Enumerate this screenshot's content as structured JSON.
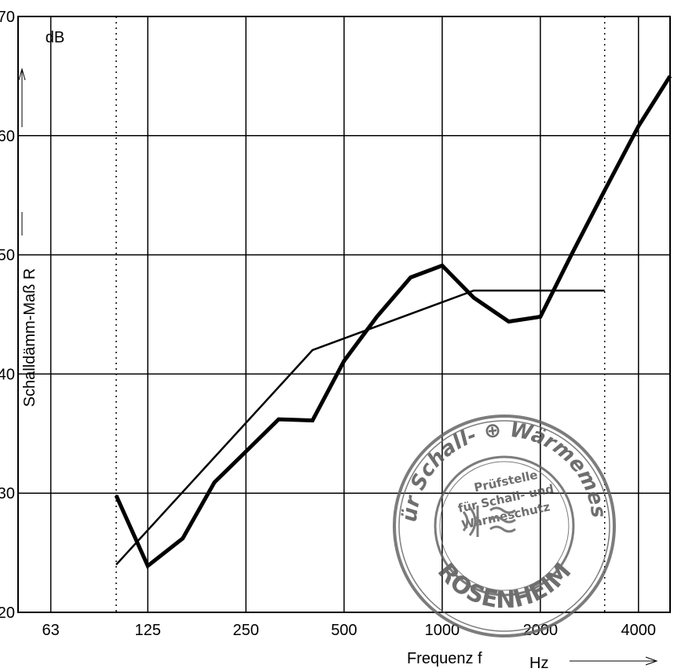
{
  "chart_data": {
    "type": "line",
    "title": "",
    "xlabel": "Frequenz f",
    "xunit": "Hz",
    "ylabel": "Schalldämm-Maß R",
    "yunit": "dB",
    "xscale": "log",
    "xlim": [
      50,
      5000
    ],
    "ylim": [
      20,
      70
    ],
    "grid": true,
    "xticks": [
      "63",
      "125",
      "250",
      "500",
      "1000",
      "2000",
      "4000"
    ],
    "yticks": [
      "20",
      "30",
      "40",
      "50",
      "60",
      "70"
    ],
    "dotted_frequency_markers": [
      100,
      3150
    ],
    "series": [
      {
        "style": "thick",
        "x": [
          100,
          125,
          160,
          200,
          250,
          315,
          400,
          500,
          630,
          800,
          1000,
          1250,
          1600,
          2000,
          2500,
          3150,
          4000,
          5000
        ],
        "y": [
          29.8,
          23.9,
          26.2,
          30.9,
          33.5,
          36.2,
          36.1,
          41.1,
          44.8,
          48.1,
          49.1,
          46.4,
          44.4,
          44.8,
          50.1,
          55.4,
          60.8,
          65.0
        ]
      },
      {
        "style": "thin",
        "x": [
          100,
          400,
          1250,
          3150
        ],
        "y": [
          24,
          42,
          47,
          47
        ]
      }
    ]
  },
  "stamp": {
    "outer_text": "LABOR für Schall- ⊕ Wärmemesstechnik",
    "inner_lines": [
      "Prüfstelle",
      "für Schall- und",
      "Wärmeschutz"
    ],
    "city": "ROSENHEIM"
  }
}
